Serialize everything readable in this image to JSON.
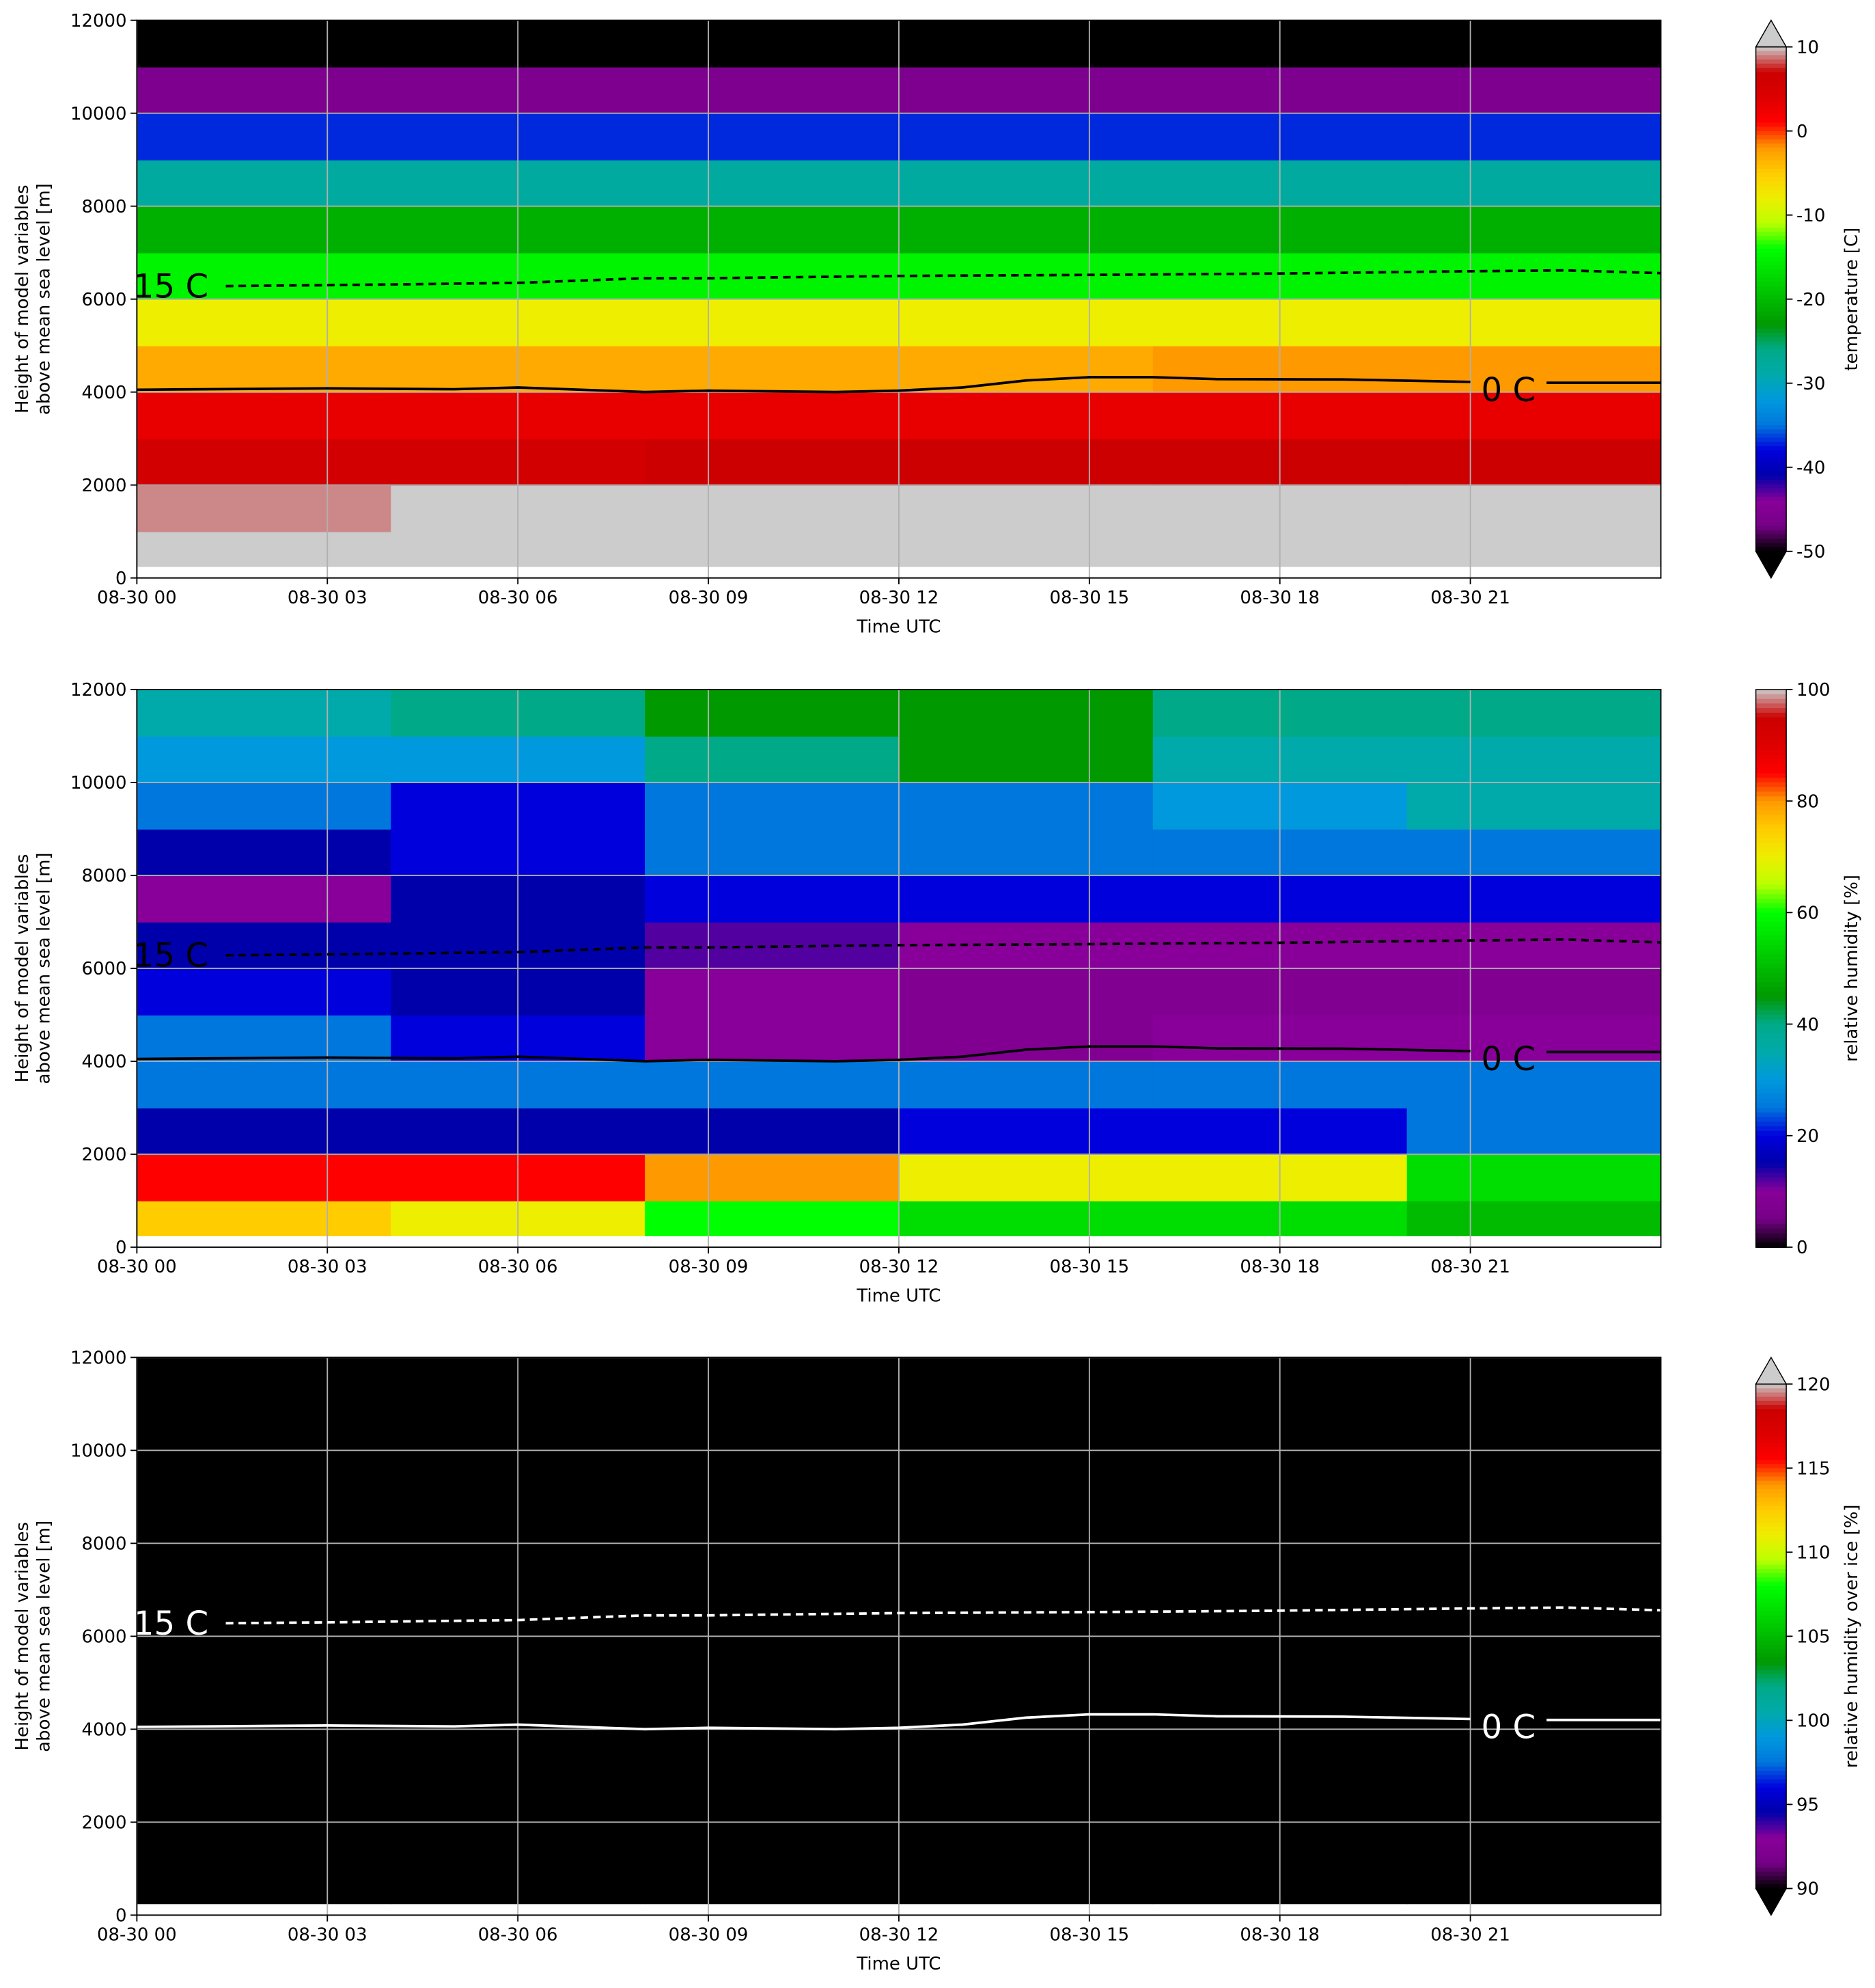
{
  "colormap": [
    "#000000",
    "#770088",
    "#880099",
    "#0000aa",
    "#0000dd",
    "#0077dd",
    "#0099dd",
    "#00aaaa",
    "#00aa88",
    "#009900",
    "#00bb00",
    "#00dd00",
    "#00ff00",
    "#bbff00",
    "#eeee00",
    "#ffcc00",
    "#ff9900",
    "#ff0000",
    "#dd0000",
    "#cc0000",
    "#cccccc"
  ],
  "chart_data": [
    {
      "type": "heatmap",
      "xlabel": "Time UTC",
      "ylabel": [
        "Height of model variables",
        "above mean sea level [m]"
      ],
      "xlim": [
        0,
        24
      ],
      "ylim": [
        0,
        12000
      ],
      "xticks": [
        {
          "value": 0,
          "label": "08-30 00"
        },
        {
          "value": 3,
          "label": "08-30 03"
        },
        {
          "value": 6,
          "label": "08-30 06"
        },
        {
          "value": 9,
          "label": "08-30 09"
        },
        {
          "value": 12,
          "label": "08-30 12"
        },
        {
          "value": 15,
          "label": "08-30 15"
        },
        {
          "value": 18,
          "label": "08-30 18"
        },
        {
          "value": 21,
          "label": "08-30 21"
        }
      ],
      "yticks": [
        0,
        2000,
        4000,
        6000,
        8000,
        10000,
        12000
      ],
      "grid": true,
      "x_edges": [
        0,
        4,
        8,
        12,
        16,
        20,
        24
      ],
      "y_edges": [
        250,
        1000,
        2000,
        3000,
        4000,
        5000,
        6000,
        7000,
        8000,
        9000,
        10000,
        11000,
        12000
      ],
      "z": [
        [
          20,
          20,
          20,
          20,
          20,
          20
        ],
        [
          9,
          14,
          20,
          20,
          20,
          20
        ],
        [
          6,
          6,
          7,
          7,
          7,
          7
        ],
        [
          3,
          3,
          3,
          3,
          3,
          3
        ],
        [
          -3,
          -3,
          -3,
          -3,
          -2,
          -2
        ],
        [
          -8,
          -8,
          -8,
          -8,
          -8,
          -8
        ],
        [
          -15,
          -15,
          -15,
          -15,
          -15,
          -15
        ],
        [
          -21,
          -21,
          -21,
          -21,
          -21,
          -21
        ],
        [
          -28,
          -28,
          -28,
          -28,
          -28,
          -28
        ],
        [
          -37,
          -37,
          -37,
          -37,
          -37,
          -37
        ],
        [
          -46,
          -46,
          -46,
          -46,
          -46,
          -46
        ],
        [
          -55,
          -55,
          -55,
          -55,
          -55,
          -55
        ]
      ],
      "colorbar_label": "temperature [C]",
      "clim": [
        -50,
        10
      ],
      "cticks": [
        -50,
        -40,
        -30,
        -20,
        -10,
        0,
        10
      ],
      "extend": "both",
      "contours": [
        {
          "label": "15 C",
          "color": "#000000",
          "dashed": true,
          "x": [
            0,
            1.4,
            3,
            6,
            8,
            9,
            12,
            15,
            18,
            21,
            22.5,
            24
          ],
          "values": [
            null,
            6280,
            6300,
            6350,
            6450,
            6450,
            6500,
            6520,
            6550,
            6600,
            6620,
            6560
          ]
        },
        {
          "label": "0 C",
          "color": "#000000",
          "dashed": false,
          "x": [
            0,
            3,
            5,
            6,
            8,
            9,
            11,
            12,
            13,
            14,
            15,
            16,
            17,
            19,
            21,
            21.6,
            22.2,
            24
          ],
          "values": [
            4050,
            4080,
            4060,
            4100,
            4000,
            4030,
            4000,
            4030,
            4100,
            4250,
            4320,
            4320,
            4280,
            4270,
            4220,
            null,
            4200,
            4200
          ]
        }
      ]
    },
    {
      "type": "heatmap",
      "xlabel": "Time UTC",
      "ylabel": [
        "Height of model variables",
        "above mean sea level [m]"
      ],
      "xlim": [
        0,
        24
      ],
      "ylim": [
        0,
        12000
      ],
      "xticks": [
        {
          "value": 0,
          "label": "08-30 00"
        },
        {
          "value": 3,
          "label": "08-30 03"
        },
        {
          "value": 6,
          "label": "08-30 06"
        },
        {
          "value": 9,
          "label": "08-30 09"
        },
        {
          "value": 12,
          "label": "08-30 12"
        },
        {
          "value": 15,
          "label": "08-30 15"
        },
        {
          "value": 18,
          "label": "08-30 18"
        },
        {
          "value": 21,
          "label": "08-30 21"
        }
      ],
      "yticks": [
        0,
        2000,
        4000,
        6000,
        8000,
        10000,
        12000
      ],
      "grid": true,
      "x_edges": [
        0,
        4,
        8,
        12,
        16,
        20,
        24
      ],
      "y_edges": [
        250,
        1000,
        2000,
        3000,
        4000,
        5000,
        6000,
        7000,
        8000,
        9000,
        10000,
        11000,
        12000
      ],
      "z": [
        [
          75,
          70,
          60,
          55,
          55,
          50
        ],
        [
          85,
          85,
          80,
          70,
          70,
          55
        ],
        [
          15,
          15,
          15,
          20,
          20,
          25
        ],
        [
          25,
          25,
          25,
          25,
          25,
          25
        ],
        [
          25,
          20,
          10,
          8,
          10,
          10
        ],
        [
          20,
          15,
          10,
          8,
          8,
          8
        ],
        [
          15,
          15,
          12,
          10,
          10,
          10
        ],
        [
          10,
          15,
          20,
          20,
          20,
          20
        ],
        [
          15,
          20,
          25,
          25,
          25,
          25
        ],
        [
          25,
          20,
          25,
          25,
          30,
          35
        ],
        [
          30,
          30,
          40,
          45,
          35,
          35
        ],
        [
          35,
          40,
          45,
          45,
          40,
          40
        ]
      ],
      "colorbar_label": "relative humidity [%]",
      "clim": [
        0,
        100
      ],
      "cticks": [
        0,
        20,
        40,
        60,
        80,
        100
      ],
      "extend": "neither",
      "contours": [
        {
          "label": "15 C",
          "color": "#000000",
          "dashed": true,
          "x": [
            0,
            1.4,
            3,
            6,
            8,
            9,
            12,
            15,
            18,
            21,
            22.5,
            24
          ],
          "values": [
            null,
            6280,
            6300,
            6350,
            6450,
            6450,
            6500,
            6520,
            6550,
            6600,
            6620,
            6560
          ]
        },
        {
          "label": "0 C",
          "color": "#000000",
          "dashed": false,
          "x": [
            0,
            3,
            5,
            6,
            8,
            9,
            11,
            12,
            13,
            14,
            15,
            16,
            17,
            19,
            21,
            21.6,
            22.2,
            24
          ],
          "values": [
            4050,
            4080,
            4060,
            4100,
            4000,
            4030,
            4000,
            4030,
            4100,
            4250,
            4320,
            4320,
            4280,
            4270,
            4220,
            null,
            4200,
            4200
          ]
        }
      ]
    },
    {
      "type": "heatmap",
      "xlabel": "Time UTC",
      "ylabel": [
        "Height of model variables",
        "above mean sea level [m]"
      ],
      "xlim": [
        0,
        24
      ],
      "ylim": [
        0,
        12000
      ],
      "xticks": [
        {
          "value": 0,
          "label": "08-30 00"
        },
        {
          "value": 3,
          "label": "08-30 03"
        },
        {
          "value": 6,
          "label": "08-30 06"
        },
        {
          "value": 9,
          "label": "08-30 09"
        },
        {
          "value": 12,
          "label": "08-30 12"
        },
        {
          "value": 15,
          "label": "08-30 15"
        },
        {
          "value": 18,
          "label": "08-30 18"
        },
        {
          "value": 21,
          "label": "08-30 21"
        }
      ],
      "yticks": [
        0,
        2000,
        4000,
        6000,
        8000,
        10000,
        12000
      ],
      "grid": true,
      "x_edges": [
        0,
        4,
        8,
        12,
        16,
        20,
        24
      ],
      "y_edges": [
        250,
        1000,
        2000,
        3000,
        4000,
        5000,
        6000,
        7000,
        8000,
        9000,
        10000,
        11000,
        12000
      ],
      "z": [
        [
          60,
          60,
          60,
          60,
          60,
          60
        ],
        [
          55,
          55,
          55,
          55,
          55,
          55
        ],
        [
          40,
          40,
          40,
          40,
          40,
          40
        ],
        [
          35,
          35,
          35,
          35,
          35,
          35
        ],
        [
          35,
          35,
          35,
          35,
          35,
          35
        ],
        [
          30,
          30,
          30,
          30,
          30,
          30
        ],
        [
          30,
          30,
          30,
          30,
          30,
          30
        ],
        [
          35,
          35,
          35,
          35,
          35,
          35
        ],
        [
          45,
          45,
          45,
          45,
          45,
          45
        ],
        [
          55,
          55,
          55,
          55,
          55,
          55
        ],
        [
          70,
          70,
          70,
          70,
          70,
          70
        ],
        [
          65,
          65,
          65,
          65,
          65,
          65
        ]
      ],
      "colorbar_label": "relative humidity over ice [%]",
      "clim": [
        90,
        120
      ],
      "cticks": [
        90,
        95,
        100,
        105,
        110,
        115,
        120
      ],
      "extend": "both",
      "contours": [
        {
          "label": "15 C",
          "color": "#ffffff",
          "dashed": true,
          "x": [
            0,
            1.4,
            3,
            6,
            8,
            9,
            12,
            15,
            18,
            21,
            22.5,
            24
          ],
          "values": [
            null,
            6280,
            6300,
            6350,
            6450,
            6450,
            6500,
            6520,
            6550,
            6600,
            6620,
            6560
          ]
        },
        {
          "label": "0 C",
          "color": "#ffffff",
          "dashed": false,
          "x": [
            0,
            3,
            5,
            6,
            8,
            9,
            11,
            12,
            13,
            14,
            15,
            16,
            17,
            19,
            21,
            21.6,
            22.2,
            24
          ],
          "values": [
            4050,
            4080,
            4060,
            4100,
            4000,
            4030,
            4000,
            4030,
            4100,
            4250,
            4320,
            4320,
            4280,
            4270,
            4220,
            null,
            4200,
            4200
          ]
        }
      ]
    }
  ]
}
